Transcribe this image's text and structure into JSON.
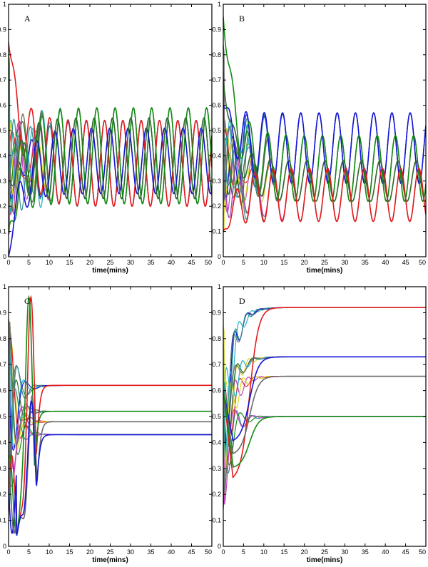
{
  "colors": {
    "red": "#e41a1c",
    "blue": "#1515d6",
    "green": "#138a13",
    "dark_green": "#2e6b2e",
    "gray": "#6b6b6b",
    "cyan": "#20b2c8",
    "yellow": "#d8d820",
    "magenta": "#c040c0",
    "teal": "#2a8f8f"
  },
  "chart_data": [
    {
      "type": "line",
      "panel_label": "A",
      "xlabel": "time(mins)",
      "xlim": [
        0,
        50
      ],
      "ylim": [
        0,
        1
      ],
      "xticks": [
        "0",
        "5",
        "10",
        "15",
        "20",
        "25",
        "30",
        "35",
        "40",
        "45",
        "50"
      ],
      "yticks": [
        "0",
        "0.1",
        "0.2",
        "0.3",
        "0.4",
        "0.5",
        "0.6",
        "0.7",
        "0.8",
        "0.9",
        "1"
      ],
      "grid": false,
      "behavior": "sustained oscillation",
      "period_mins": 4.5,
      "series": [
        {
          "color_key": "red",
          "steady_center": 0.37,
          "amplitude": 0.17,
          "phase": 0.0,
          "initial": 0.85
        },
        {
          "color_key": "green",
          "steady_center": 0.4,
          "amplitude": 0.19,
          "phase": 0.6,
          "initial": 0.1
        },
        {
          "color_key": "blue",
          "steady_center": 0.38,
          "amplitude": 0.13,
          "phase": 0.3,
          "initial": 0.0
        },
        {
          "color_key": "dark_green",
          "steady_center": 0.39,
          "amplitude": 0.16,
          "phase": 0.45,
          "initial": 0.3
        }
      ]
    },
    {
      "type": "line",
      "panel_label": "B",
      "xlabel": "time(mins)",
      "xlim": [
        0,
        50
      ],
      "ylim": [
        0,
        1
      ],
      "xticks": [
        "0",
        "5",
        "10",
        "15",
        "20",
        "25",
        "30",
        "35",
        "40",
        "45",
        "50"
      ],
      "yticks": [
        "0",
        "0.1",
        "0.2",
        "0.3",
        "0.4",
        "0.5",
        "0.6",
        "0.7",
        "0.8",
        "0.9",
        "1"
      ],
      "grid": false,
      "behavior": "sustained oscillation",
      "period_mins": 4.5,
      "series": [
        {
          "color_key": "blue",
          "steady_center": 0.43,
          "amplitude": 0.14,
          "phase": 0.0,
          "initial": 0.6
        },
        {
          "color_key": "green",
          "steady_center": 0.35,
          "amplitude": 0.13,
          "phase": 0.2,
          "initial": 0.95
        },
        {
          "color_key": "dark_green",
          "steady_center": 0.3,
          "amplitude": 0.08,
          "phase": 0.35,
          "initial": 0.7
        },
        {
          "color_key": "red",
          "steady_center": 0.245,
          "amplitude": 0.105,
          "phase": 0.5,
          "initial": 0.1
        }
      ]
    },
    {
      "type": "line",
      "panel_label": "C",
      "xlabel": "time(mins)",
      "xlim": [
        0,
        50
      ],
      "ylim": [
        0,
        1
      ],
      "xticks": [
        "0",
        "5",
        "10",
        "15",
        "20",
        "25",
        "30",
        "35",
        "40",
        "45",
        "50"
      ],
      "yticks": [
        "0",
        "0.1",
        "0.2",
        "0.3",
        "0.4",
        "0.5",
        "0.6",
        "0.7",
        "0.8",
        "0.9",
        "1"
      ],
      "grid": false,
      "behavior": "damped to steady state",
      "series": [
        {
          "color_key": "red",
          "steady": 0.62,
          "peak": 0.96,
          "peak_time": 5.5
        },
        {
          "color_key": "green",
          "steady": 0.52,
          "peak": 0.96,
          "peak_time": 5.0
        },
        {
          "color_key": "gray",
          "steady": 0.48,
          "peak": 0.58,
          "peak_time": 5.8
        },
        {
          "color_key": "blue",
          "steady": 0.43,
          "peak": 0.56,
          "peak_time": 5.6
        }
      ]
    },
    {
      "type": "line",
      "panel_label": "D",
      "xlabel": "time(mins)",
      "xlim": [
        0,
        50
      ],
      "ylim": [
        0,
        1
      ],
      "xticks": [
        "0",
        "5",
        "10",
        "15",
        "20",
        "25",
        "30",
        "35",
        "40",
        "45",
        "50"
      ],
      "yticks": [
        "0",
        "0.1",
        "0.2",
        "0.3",
        "0.4",
        "0.5",
        "0.6",
        "0.7",
        "0.8",
        "0.9",
        "1"
      ],
      "grid": false,
      "behavior": "rise to steady state",
      "series": [
        {
          "color_key": "red",
          "steady": 0.92,
          "trough": 0.25,
          "trough_time": 2.5
        },
        {
          "color_key": "blue",
          "steady": 0.73,
          "trough": 0.4,
          "trough_time": 2.5
        },
        {
          "color_key": "gray",
          "steady": 0.655,
          "trough": 0.35,
          "trough_time": 2.5
        },
        {
          "color_key": "green",
          "steady": 0.5,
          "trough": 0.3,
          "trough_time": 2.5
        }
      ]
    }
  ]
}
